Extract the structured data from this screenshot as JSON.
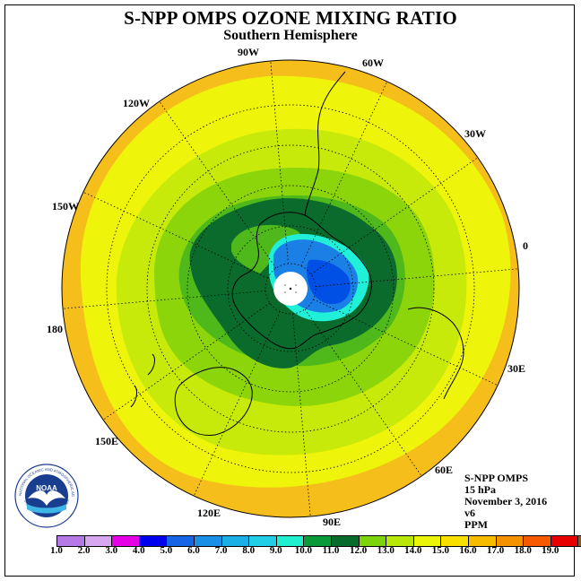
{
  "title": "S-NPP OMPS OZONE MIXING RATIO",
  "subtitle": "Southern Hemisphere",
  "longitude_labels": [
    {
      "id": "90w",
      "text": "90W"
    },
    {
      "id": "60w",
      "text": "60W"
    },
    {
      "id": "30w",
      "text": "30W"
    },
    {
      "id": "0",
      "text": "0"
    },
    {
      "id": "30e",
      "text": "30E"
    },
    {
      "id": "60e",
      "text": "60E"
    },
    {
      "id": "90e",
      "text": "90E"
    },
    {
      "id": "120e",
      "text": "120E"
    },
    {
      "id": "150e",
      "text": "150E"
    },
    {
      "id": "180",
      "text": "180"
    },
    {
      "id": "150w",
      "text": "150W"
    },
    {
      "id": "120w",
      "text": "120W"
    }
  ],
  "info": {
    "instrument": "S-NPP OMPS",
    "level": "15 hPa",
    "date": "November 3, 2016",
    "version": "v6",
    "units": "PPM"
  },
  "colorbar": {
    "labels": [
      "1.0",
      "2.0",
      "3.0",
      "4.0",
      "5.0",
      "6.0",
      "7.0",
      "8.0",
      "9.0",
      "10.0",
      "11.0",
      "12.0",
      "13.0",
      "14.0",
      "15.0",
      "16.0",
      "17.0",
      "18.0",
      "19.0"
    ],
    "colors": [
      "#b57ae6",
      "#d9a7f0",
      "#e600e6",
      "#0000ee",
      "#1565e6",
      "#1a8fe6",
      "#1ab0e6",
      "#22cde6",
      "#20f0d0",
      "#0a9a3a",
      "#076b2c",
      "#7dd40a",
      "#b8e80a",
      "#eaf50a",
      "#f8e000",
      "#f5bc00",
      "#f59200",
      "#f55a00",
      "#e60000",
      "#8b5a2b"
    ]
  },
  "logo": {
    "text": "NOAA",
    "ring_text": "NATIONAL OCEANIC AND ATMOSPHERIC ADMINISTRATION",
    "ring_text_bottom": "U.S. DEPARTMENT OF COMMERCE",
    "color": "#1a3e8f"
  },
  "map_colors": {
    "outer_orange": "#f5be1a",
    "yellow": "#eef50a",
    "yellow_green": "#c8ea0a",
    "light_green": "#8cd50a",
    "green": "#4fb81a",
    "dark_green": "#0a6b2c",
    "cyan": "#20f0d8",
    "blue": "#1a80e6",
    "deep_blue": "#0050e6"
  }
}
